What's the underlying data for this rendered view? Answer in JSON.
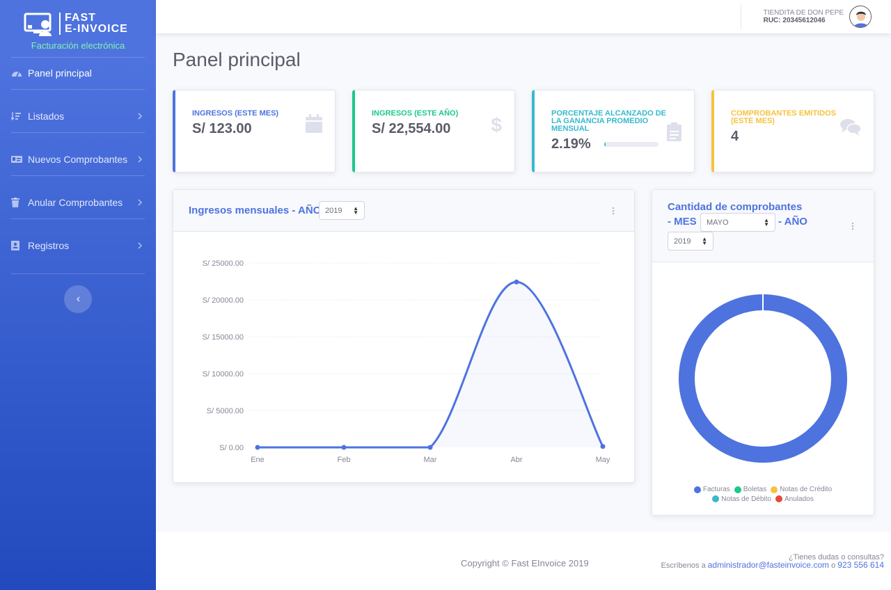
{
  "brand": {
    "line1": "FAST",
    "line2": "E-INVOICE",
    "subtitle": "Facturación electrónica"
  },
  "sidebar": {
    "items": [
      {
        "label": "Panel principal",
        "icon": "tachometer-icon"
      },
      {
        "label": "Listados",
        "icon": "sort-list-icon"
      },
      {
        "label": "Nuevos Comprobantes",
        "icon": "id-card-icon"
      },
      {
        "label": "Anular Comprobantes",
        "icon": "trash-icon"
      },
      {
        "label": "Registros",
        "icon": "address-book-icon"
      }
    ],
    "toggle_icon": "chevron-left-icon"
  },
  "topbar": {
    "user_name": "TIENDITA DE DON PEPE",
    "ruc": "RUC: 20345612046"
  },
  "page_title": "Panel principal",
  "cards": [
    {
      "label": "INGRESOS (ESTE MES)",
      "value": "S/ 123.00",
      "color": "#4e73df",
      "icon": "calendar-icon"
    },
    {
      "label": "INGRESOS (ESTE AÑO)",
      "value": "S/ 22,554.00",
      "color": "#1cc88a",
      "icon": "dollar-icon"
    },
    {
      "label": "PORCENTAJE ALCANZADO DE LA GANANCIA PROMEDIO MENSUAL",
      "value": "2.19%",
      "progress": 0.0219,
      "color": "#36b9cc",
      "icon": "clipboard-icon"
    },
    {
      "label": "COMPROBANTES EMITIDOS (ESTE MES)",
      "value": "4",
      "color": "#f6c23e",
      "icon": "comments-icon"
    }
  ],
  "area_chart": {
    "title": "Ingresos mensuales - AÑO",
    "year": "2019"
  },
  "donut": {
    "title_a": "Cantidad de comprobantes",
    "title_b": "- MES",
    "title_c": "- AÑO",
    "month": "MAYO",
    "year": "2019"
  },
  "chart_data": [
    {
      "type": "area",
      "title": "Ingresos mensuales - AÑO",
      "categories": [
        "Ene",
        "Feb",
        "Mar",
        "Abr",
        "May"
      ],
      "series": [
        {
          "values": [
            0,
            0,
            0,
            22431,
            123
          ],
          "color": "#4e73df"
        }
      ],
      "y_ticks": [
        "S/ 0.00",
        "S/ 5000.00",
        "S/ 10000.00",
        "S/ 15000.00",
        "S/ 20000.00",
        "S/ 25000.00"
      ],
      "ylim": [
        0,
        25000
      ],
      "grid": true
    },
    {
      "type": "pie",
      "title": "Cantidad de comprobantes",
      "labels": [
        "Facturas",
        "Boletas",
        "Notas de Crédito",
        "Notas de Débito",
        "Anulados"
      ],
      "values": [
        4,
        0,
        0,
        0,
        0
      ],
      "colors": [
        "#4e73df",
        "#1cc88a",
        "#f6c23e",
        "#36b9cc",
        "#e74a3b"
      ],
      "legend": "bottom"
    }
  ],
  "footer": {
    "copyright": "Copyright © Fast EInvoice 2019",
    "question": "¿Tienes dudas o consultas?",
    "write_to": "Escríbenos a",
    "email": "administrador@fasteinvoice.com",
    "or": "o",
    "phone": "923 556 614"
  }
}
